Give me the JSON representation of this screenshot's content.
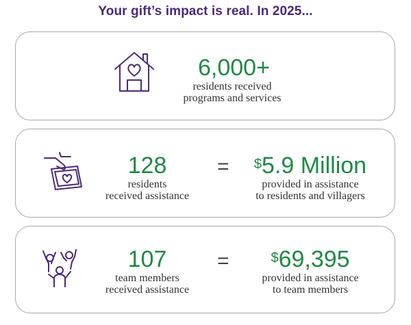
{
  "heading": "Your gift’s impact is real. In 2025...",
  "colors": {
    "purple": "#4a2a7a",
    "green": "#1f8a44"
  },
  "cards": [
    {
      "icon": "house-heart-icon",
      "value": "6,000+",
      "desc_line1": "residents received",
      "desc_line2": "programs and services"
    },
    {
      "icon": "hand-giving-money-icon",
      "left_value": "128",
      "left_desc_line1": "residents",
      "left_desc_line2": "received assistance",
      "equals": "=",
      "right_symbol": "$",
      "right_value": "5.9 Million",
      "right_desc_line1": "provided in assistance",
      "right_desc_line2": "to residents and villagers"
    },
    {
      "icon": "team-celebration-icon",
      "left_value": "107",
      "left_desc_line1": "team members",
      "left_desc_line2": "received assistance",
      "equals": "=",
      "right_symbol": "$",
      "right_value": "69,395",
      "right_desc_line1": "provided in assistance",
      "right_desc_line2": "to team members"
    }
  ]
}
